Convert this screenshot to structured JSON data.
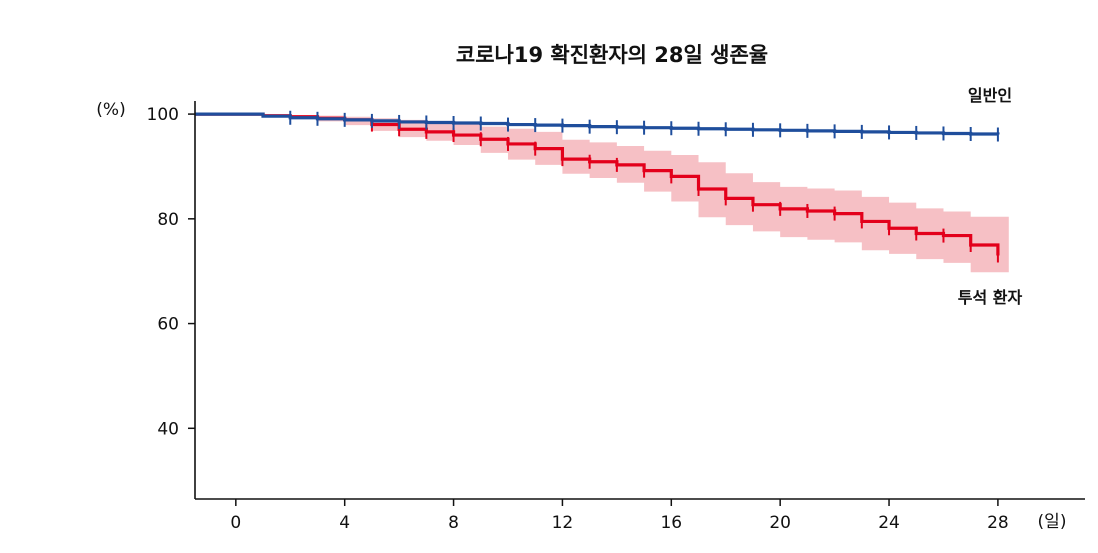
{
  "chart_data": {
    "type": "line",
    "title": "코로나19 확진환자의 28일 생존율",
    "xlabel": "(일)",
    "ylabel": "(%)",
    "xlim": [
      -1.5,
      31.2
    ],
    "ylim": [
      26.5,
      102.5
    ],
    "x_ticks": [
      0,
      4,
      8,
      12,
      16,
      20,
      24,
      28
    ],
    "y_ticks": [
      40,
      60,
      80,
      100
    ],
    "grid": false,
    "series": [
      {
        "name": "일반인",
        "color": "#1f4e9c",
        "step_x": [
          -1.5,
          1,
          2,
          3,
          4,
          5,
          6,
          7,
          8,
          9,
          10,
          11,
          12,
          13,
          14,
          15,
          16,
          17,
          18,
          19,
          20,
          21,
          22,
          23,
          24,
          25,
          26,
          27,
          28
        ],
        "step_y": [
          100,
          99.6,
          99.3,
          99.1,
          98.9,
          98.7,
          98.5,
          98.4,
          98.3,
          98.2,
          98.0,
          97.9,
          97.8,
          97.6,
          97.5,
          97.4,
          97.3,
          97.2,
          97.1,
          97.0,
          96.9,
          96.8,
          96.7,
          96.6,
          96.5,
          96.4,
          96.3,
          96.2,
          96.1
        ],
        "censor_x": [
          2,
          3,
          4,
          5,
          6,
          7,
          8,
          9,
          10,
          11,
          12,
          13,
          14,
          15,
          16,
          17,
          18,
          19,
          20,
          21,
          22,
          23,
          24,
          25,
          26,
          27,
          28
        ]
      },
      {
        "name": "투석 환자",
        "color": "#e3001b",
        "band_color": "#f5b5bb",
        "step_x": [
          -1.5,
          1,
          2,
          3,
          4,
          5,
          6,
          7,
          8,
          9,
          10,
          11,
          12,
          13,
          14,
          15,
          16,
          17,
          18,
          19,
          20,
          21,
          22,
          23,
          24,
          25,
          26,
          27,
          28
        ],
        "step_y": [
          100,
          99.7,
          99.5,
          99.2,
          98.9,
          98.0,
          97.1,
          96.6,
          96.0,
          95.2,
          94.3,
          93.4,
          91.4,
          90.9,
          90.3,
          89.2,
          88.1,
          85.7,
          83.9,
          82.7,
          81.9,
          81.5,
          81.0,
          79.5,
          78.2,
          77.2,
          76.8,
          75.0,
          73.0
        ],
        "lower": [
          100,
          99.7,
          99.1,
          98.6,
          97.9,
          96.8,
          95.6,
          94.9,
          94.1,
          92.6,
          91.3,
          90.3,
          88.6,
          87.8,
          86.9,
          85.2,
          83.3,
          80.3,
          78.8,
          77.6,
          76.5,
          76.0,
          75.5,
          74.0,
          73.3,
          72.3,
          71.6,
          69.8,
          69.8
        ],
        "upper": [
          100,
          99.9,
          99.8,
          99.7,
          99.5,
          99.2,
          98.9,
          98.5,
          98.1,
          97.6,
          97.2,
          96.6,
          95.1,
          94.6,
          93.9,
          93.0,
          92.2,
          90.8,
          88.7,
          87.0,
          86.1,
          85.8,
          85.4,
          84.2,
          83.1,
          82.0,
          81.4,
          80.4,
          80.4
        ],
        "censor_x": [
          5,
          6,
          7,
          8,
          9,
          10,
          11,
          12,
          13,
          14,
          15,
          16,
          17,
          18,
          19,
          20,
          21,
          22,
          23,
          24,
          25,
          26,
          27,
          28
        ]
      }
    ]
  }
}
